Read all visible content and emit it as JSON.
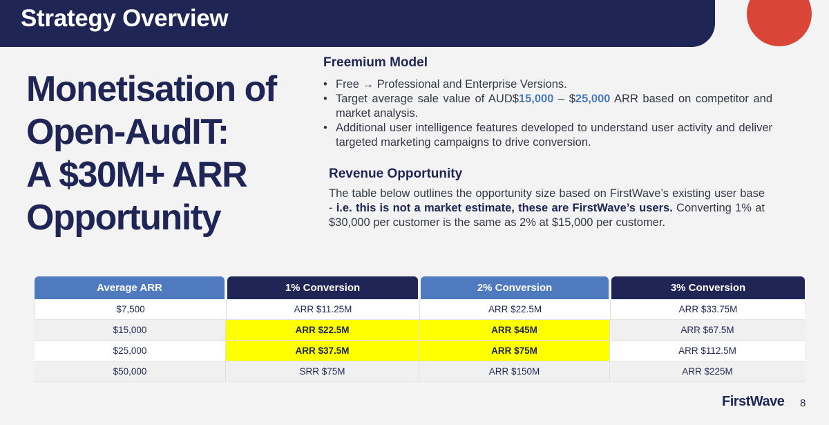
{
  "header": {
    "title": "Strategy Overview"
  },
  "main_title": {
    "lines": [
      "Monetisation of",
      "Open-AudIT:",
      "A $30M+ ARR",
      "Opportunity"
    ]
  },
  "freemium": {
    "heading": "Freemium Model",
    "bullet1": {
      "pre": "Free ",
      "arrow": "→",
      "post": " Professional and Enterprise Versions."
    },
    "bullet2": {
      "pre": "Target average sale value of AUD$",
      "v1": "15,000",
      "mid": " – $",
      "v2": "25,000",
      "post": " ARR based on competitor and market analysis."
    },
    "bullet3": "Additional user intelligence features developed to understand user activity and deliver targeted marketing campaigns to drive conversion."
  },
  "revenue": {
    "heading": "Revenue Opportunity",
    "p1": "The table below outlines the opportunity size based on FirstWave’s existing user base - ",
    "p_bold": "i.e. this is not a market estimate, these are FirstWave’s users.",
    "p2": " Converting 1% at $30,000 per customer is the same as 2% at $15,000 per customer."
  },
  "table": {
    "headers": [
      {
        "label": "Average ARR",
        "color": "#4f7ac0"
      },
      {
        "label": "1% Conversion",
        "color": "#1f2555"
      },
      {
        "label": "2% Conversion",
        "color": "#4f7ac0"
      },
      {
        "label": "3% Conversion",
        "color": "#1f2555"
      }
    ],
    "rows": [
      [
        "$7,500",
        "ARR  $11.25M",
        "ARR $22.5M",
        "ARR $33.75M"
      ],
      [
        "$15,000",
        "ARR $22.5M",
        "ARR $45M",
        "ARR $67.5M"
      ],
      [
        "$25,000",
        "ARR $37.5M",
        "ARR $75M",
        "ARR $112.5M"
      ],
      [
        "$50,000",
        "SRR $75M",
        "ARR $150M",
        "ARR $225M"
      ]
    ],
    "highlight_color": "#ffff00"
  },
  "footer": {
    "brand": "FirstWave",
    "page": "8"
  },
  "colors": {
    "navy": "#1f2555",
    "accent_red": "#d94536",
    "accent_blue": "#4a7ac0"
  }
}
